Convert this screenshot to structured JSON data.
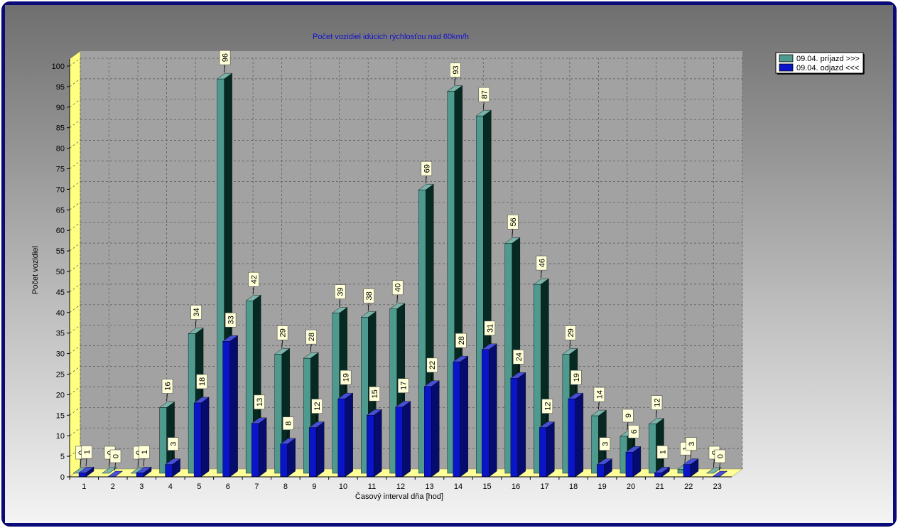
{
  "chart_data": {
    "type": "bar",
    "title": "Počet vozidiel idúcich rýchlosťou nad 60km/h",
    "xlabel": "Časový interval dňa [hod]",
    "ylabel": "Počet vozidiel",
    "ylim": [
      0,
      100
    ],
    "yticks": [
      0,
      5,
      10,
      15,
      20,
      25,
      30,
      35,
      40,
      45,
      50,
      55,
      60,
      65,
      70,
      75,
      80,
      85,
      90,
      95,
      100
    ],
    "categories": [
      "1",
      "2",
      "3",
      "4",
      "5",
      "6",
      "7",
      "8",
      "9",
      "10",
      "11",
      "12",
      "13",
      "14",
      "15",
      "16",
      "17",
      "18",
      "19",
      "20",
      "21",
      "22",
      "23"
    ],
    "series": [
      {
        "name": "09.04.  príjazd >>>",
        "color": "#4e9a8e",
        "values": [
          0,
          0,
          0,
          16,
          34,
          96,
          42,
          29,
          28,
          39,
          38,
          40,
          69,
          93,
          87,
          56,
          46,
          29,
          14,
          9,
          12,
          1,
          0
        ]
      },
      {
        "name": "09.04.  odjazd <<<",
        "color": "#0a14c8",
        "values": [
          1,
          0,
          1,
          3,
          18,
          33,
          13,
          8,
          12,
          19,
          15,
          17,
          22,
          28,
          31,
          24,
          12,
          19,
          3,
          6,
          1,
          3,
          0
        ]
      }
    ],
    "grid": true,
    "legend_position": "top-right",
    "style": "3d-bars"
  }
}
